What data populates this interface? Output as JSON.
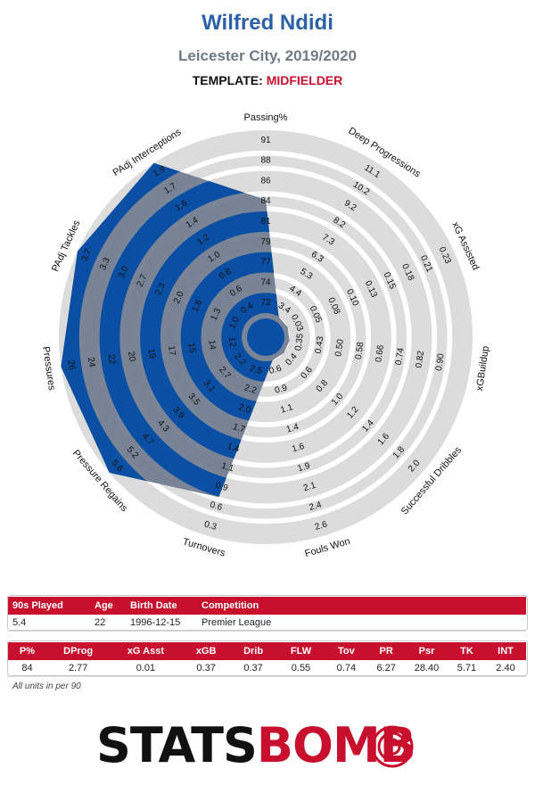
{
  "header": {
    "player": "Wilfred Ndidi",
    "team_season": "Leicester City, 2019/2020",
    "template_label": "TEMPLATE:",
    "template_value": "MIDFIELDER"
  },
  "colors": {
    "fill": "#0a4fa3",
    "fill_alt": "#6e7b8d",
    "ring": "#dcdcdc",
    "accent": "#c8102e"
  },
  "chart_data": {
    "type": "radar",
    "axes": [
      {
        "name": "Passing%",
        "ticks": [
          "72",
          "74",
          "77",
          "79",
          "81",
          "84",
          "86",
          "88",
          "91"
        ],
        "value": 84
      },
      {
        "name": "Deep Progressions",
        "ticks": [
          "3.4",
          "4.4",
          "5.3",
          "6.3",
          "7.3",
          "8.2",
          "9.2",
          "10.2",
          "11.1"
        ],
        "value": 2.77
      },
      {
        "name": "xG Assisted",
        "ticks": [
          "0.03",
          "0.05",
          "0.08",
          "0.10",
          "0.13",
          "0.15",
          "0.18",
          "0.21",
          "0.23"
        ],
        "value": 0.01
      },
      {
        "name": "xGBuildup",
        "ticks": [
          "0.35",
          "0.43",
          "0.50",
          "0.58",
          "0.66",
          "0.74",
          "0.82",
          "0.90"
        ],
        "value": 0.37
      },
      {
        "name": "Successful Dribbles",
        "ticks": [
          "0.4",
          "0.6",
          "0.8",
          "1.0",
          "1.2",
          "1.4",
          "1.6",
          "1.8",
          "2.0"
        ],
        "value": 0.37
      },
      {
        "name": "Fouls Won",
        "ticks": [
          "0.6",
          "0.9",
          "1.1",
          "1.4",
          "1.6",
          "1.9",
          "2.1",
          "2.4",
          "2.6"
        ],
        "value": 0.55
      },
      {
        "name": "Turnovers",
        "ticks": [
          "2.5",
          "2.2",
          "2.0",
          "1.7",
          "1.4",
          "1.1",
          "0.9",
          "0.6",
          "0.3"
        ],
        "value": 0.74
      },
      {
        "name": "Pressure Regains",
        "ticks": [
          "2.2",
          "2.7",
          "3.1",
          "3.5",
          "3.9",
          "4.3",
          "4.7",
          "5.2",
          "5.6"
        ],
        "value": 6.27
      },
      {
        "name": "Pressures",
        "ticks": [
          "12",
          "14",
          "15",
          "17",
          "19",
          "20",
          "22",
          "24",
          "26"
        ],
        "value": 28.4
      },
      {
        "name": "PAdj Tackles",
        "ticks": [
          "1.0",
          "1.3",
          "1.6",
          "2.0",
          "2.3",
          "2.7",
          "3.0",
          "3.3",
          "3.7"
        ],
        "value": 5.71
      },
      {
        "name": "PAdj Interceptions",
        "ticks": [
          "0.4",
          "0.6",
          "0.8",
          "1.0",
          "1.2",
          "1.4",
          "1.6",
          "1.7",
          "1.9"
        ],
        "value": 2.4
      }
    ],
    "fractions": [
      0.62,
      0.0,
      0.0,
      0.0,
      0.0,
      0.0,
      0.78,
      1.0,
      1.0,
      1.0,
      1.0
    ]
  },
  "info_table": {
    "headers": [
      "90s Played",
      "Age",
      "Birth Date",
      "Competition"
    ],
    "row": [
      "5.4",
      "22",
      "1996-12-15",
      "Premier League"
    ]
  },
  "stats_table": {
    "headers": [
      "P%",
      "DProg",
      "xG Asst",
      "xGB",
      "Drib",
      "FLW",
      "Tov",
      "PR",
      "Psr",
      "TK",
      "INT"
    ],
    "row": [
      "84",
      "2.77",
      "0.01",
      "0.37",
      "0.37",
      "0.55",
      "0.74",
      "6.27",
      "28.40",
      "5.71",
      "2.40"
    ]
  },
  "footnote": "All units in per 90",
  "logo": {
    "part1": "STATS",
    "part2": "BOMB"
  }
}
